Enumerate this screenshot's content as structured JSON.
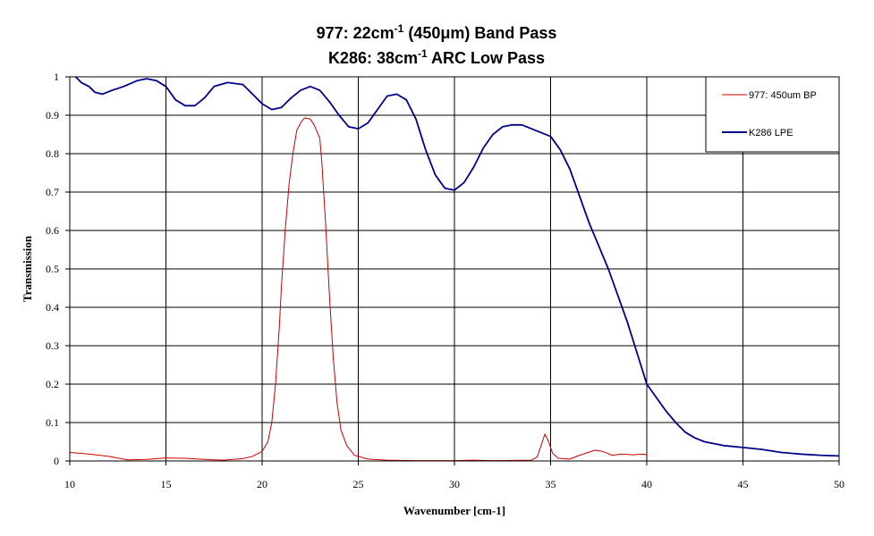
{
  "chart_data": {
    "type": "line",
    "title": {
      "line1": {
        "text": "977: 22cm",
        "sup": "-1",
        "rest": " (450μm) Band Pass"
      },
      "line2": {
        "text": "K286: 38cm",
        "sup": "-1",
        "rest": " ARC Low Pass"
      }
    },
    "xlabel": "Wavenumber [cm-1]",
    "ylabel": "Transmission",
    "xlim": [
      10,
      50
    ],
    "ylim": [
      0,
      1
    ],
    "xticks": [
      10,
      15,
      20,
      25,
      30,
      35,
      40,
      45,
      50
    ],
    "yticks": [
      0,
      0.1,
      0.2,
      0.3,
      0.4,
      0.5,
      0.6,
      0.7,
      0.8,
      0.9,
      1
    ],
    "ytick_labels": [
      "0",
      "0.1",
      "0.2",
      "0.3",
      "0.4",
      "0.5",
      "0.6",
      "0.7",
      "0.8",
      "0.9",
      "1"
    ],
    "grid": true,
    "legend_position": "top-right",
    "series": [
      {
        "name": "977: 450um BP",
        "color": "#cc0000",
        "points": [
          [
            10,
            0.022
          ],
          [
            11,
            0.018
          ],
          [
            12,
            0.012
          ],
          [
            13,
            0.003
          ],
          [
            14,
            0.004
          ],
          [
            15,
            0.008
          ],
          [
            16,
            0.007
          ],
          [
            17,
            0.004
          ],
          [
            18,
            0.002
          ],
          [
            19,
            0.006
          ],
          [
            19.5,
            0.012
          ],
          [
            20,
            0.025
          ],
          [
            20.3,
            0.05
          ],
          [
            20.5,
            0.1
          ],
          [
            20.7,
            0.2
          ],
          [
            20.9,
            0.35
          ],
          [
            21,
            0.45
          ],
          [
            21.2,
            0.6
          ],
          [
            21.4,
            0.72
          ],
          [
            21.6,
            0.8
          ],
          [
            21.8,
            0.86
          ],
          [
            22,
            0.88
          ],
          [
            22.2,
            0.893
          ],
          [
            22.5,
            0.89
          ],
          [
            22.7,
            0.875
          ],
          [
            23,
            0.84
          ],
          [
            23.1,
            0.78
          ],
          [
            23.3,
            0.62
          ],
          [
            23.5,
            0.43
          ],
          [
            23.7,
            0.27
          ],
          [
            23.9,
            0.15
          ],
          [
            24.1,
            0.08
          ],
          [
            24.4,
            0.04
          ],
          [
            24.8,
            0.015
          ],
          [
            25.5,
            0.005
          ],
          [
            26.5,
            0.002
          ],
          [
            28,
            0.001
          ],
          [
            30,
            0.001
          ],
          [
            31,
            0.002
          ],
          [
            32,
            0.001
          ],
          [
            34,
            0.002
          ],
          [
            34.3,
            0.01
          ],
          [
            34.5,
            0.04
          ],
          [
            34.7,
            0.07
          ],
          [
            34.9,
            0.05
          ],
          [
            35.1,
            0.02
          ],
          [
            35.4,
            0.007
          ],
          [
            36,
            0.005
          ],
          [
            36.5,
            0.015
          ],
          [
            37.3,
            0.028
          ],
          [
            37.7,
            0.025
          ],
          [
            38.2,
            0.015
          ],
          [
            38.7,
            0.018
          ],
          [
            39.3,
            0.016
          ],
          [
            39.8,
            0.018
          ],
          [
            40,
            0.016
          ]
        ]
      },
      {
        "name": "K286 LPE",
        "color": "#00008b",
        "points": [
          [
            10.3,
            1.0
          ],
          [
            10.6,
            0.985
          ],
          [
            11,
            0.975
          ],
          [
            11.3,
            0.96
          ],
          [
            11.7,
            0.955
          ],
          [
            12.2,
            0.965
          ],
          [
            12.8,
            0.975
          ],
          [
            13.5,
            0.99
          ],
          [
            14,
            0.995
          ],
          [
            14.5,
            0.99
          ],
          [
            15,
            0.975
          ],
          [
            15.5,
            0.94
          ],
          [
            16,
            0.925
          ],
          [
            16.5,
            0.925
          ],
          [
            17,
            0.945
          ],
          [
            17.5,
            0.975
          ],
          [
            18.2,
            0.985
          ],
          [
            19,
            0.98
          ],
          [
            19.5,
            0.955
          ],
          [
            20,
            0.93
          ],
          [
            20.5,
            0.915
          ],
          [
            21,
            0.92
          ],
          [
            21.5,
            0.945
          ],
          [
            22,
            0.965
          ],
          [
            22.5,
            0.975
          ],
          [
            23,
            0.965
          ],
          [
            23.5,
            0.935
          ],
          [
            24,
            0.9
          ],
          [
            24.5,
            0.87
          ],
          [
            25,
            0.865
          ],
          [
            25.5,
            0.88
          ],
          [
            26,
            0.915
          ],
          [
            26.5,
            0.95
          ],
          [
            27,
            0.955
          ],
          [
            27.5,
            0.94
          ],
          [
            28,
            0.89
          ],
          [
            28.5,
            0.81
          ],
          [
            29,
            0.745
          ],
          [
            29.5,
            0.71
          ],
          [
            30,
            0.705
          ],
          [
            30.5,
            0.725
          ],
          [
            31,
            0.765
          ],
          [
            31.5,
            0.815
          ],
          [
            32,
            0.85
          ],
          [
            32.5,
            0.87
          ],
          [
            33,
            0.875
          ],
          [
            33.5,
            0.875
          ],
          [
            34,
            0.865
          ],
          [
            34.5,
            0.855
          ],
          [
            35,
            0.845
          ],
          [
            35.5,
            0.81
          ],
          [
            36,
            0.76
          ],
          [
            36.5,
            0.69
          ],
          [
            37,
            0.62
          ],
          [
            37.5,
            0.56
          ],
          [
            38,
            0.5
          ],
          [
            38.5,
            0.43
          ],
          [
            39,
            0.36
          ],
          [
            39.5,
            0.28
          ],
          [
            40,
            0.2
          ],
          [
            40.5,
            0.165
          ],
          [
            41,
            0.13
          ],
          [
            41.5,
            0.1
          ],
          [
            42,
            0.075
          ],
          [
            42.5,
            0.06
          ],
          [
            43,
            0.05
          ],
          [
            44,
            0.04
          ],
          [
            45,
            0.035
          ],
          [
            46,
            0.03
          ],
          [
            47,
            0.022
          ],
          [
            48,
            0.018
          ],
          [
            49,
            0.015
          ],
          [
            50,
            0.013
          ]
        ]
      }
    ]
  }
}
